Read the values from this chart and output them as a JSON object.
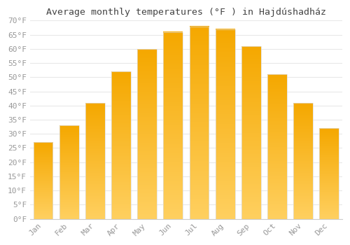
{
  "title": "Average monthly temperatures (°F ) in Hajdúshadház",
  "months": [
    "Jan",
    "Feb",
    "Mar",
    "Apr",
    "May",
    "Jun",
    "Jul",
    "Aug",
    "Sep",
    "Oct",
    "Nov",
    "Dec"
  ],
  "values": [
    27,
    33,
    41,
    52,
    60,
    66,
    68,
    67,
    61,
    51,
    41,
    32
  ],
  "bar_color_top": "#F5A800",
  "bar_color_bottom": "#FFD060",
  "bar_edge_color": "#DDDDDD",
  "background_color": "#ffffff",
  "grid_color": "#e8e8e8",
  "ylim": [
    0,
    70
  ],
  "ytick_step": 5,
  "tick_label_color": "#999999",
  "title_color": "#444444",
  "title_fontsize": 9.5,
  "tick_fontsize": 8.0,
  "bar_width": 0.75
}
